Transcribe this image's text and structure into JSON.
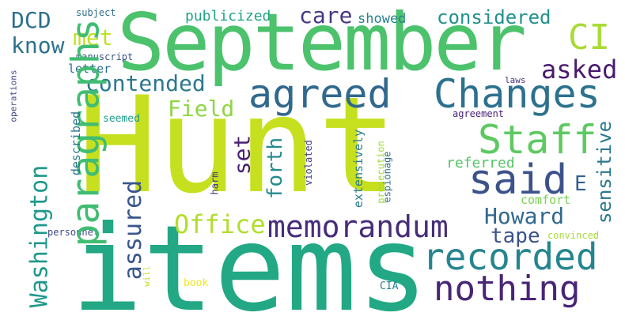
{
  "word_cloud": {
    "words": [
      {
        "text": "Hunt",
        "color": "#c6e01f"
      },
      {
        "text": "items",
        "color": "#22a884"
      },
      {
        "text": "September",
        "color": "#4cc26c"
      },
      {
        "text": "paragraphs",
        "color": "#40bd72"
      },
      {
        "text": "agreed",
        "color": "#31688e"
      },
      {
        "text": "Changes",
        "color": "#2c718e"
      },
      {
        "text": "Staff",
        "color": "#5ec962"
      },
      {
        "text": "said",
        "color": "#3b528b"
      },
      {
        "text": "recorded",
        "color": "#25858e"
      },
      {
        "text": "memorandum",
        "color": "#472d7b"
      },
      {
        "text": "nothing",
        "color": "#482576"
      },
      {
        "text": "Washington",
        "color": "#1f988b"
      },
      {
        "text": "assured",
        "color": "#39568c"
      },
      {
        "text": "Office",
        "color": "#b2dd2d"
      },
      {
        "text": "Howard",
        "color": "#31688e"
      },
      {
        "text": "tape",
        "color": "#3b528b"
      },
      {
        "text": "contended",
        "color": "#2a788e"
      },
      {
        "text": "know",
        "color": "#2c728e"
      },
      {
        "text": "DCD",
        "color": "#2d708e"
      },
      {
        "text": "met",
        "color": "#c2df23"
      },
      {
        "text": "care",
        "color": "#443983"
      },
      {
        "text": "considered",
        "color": "#21918c"
      },
      {
        "text": "CI",
        "color": "#a8db34"
      },
      {
        "text": "asked",
        "color": "#481b6d"
      },
      {
        "text": "Field",
        "color": "#8ed645"
      },
      {
        "text": "set",
        "color": "#482173"
      },
      {
        "text": "forth",
        "color": "#238a8d"
      },
      {
        "text": "sensitive",
        "color": "#2a788e"
      },
      {
        "text": "E",
        "color": "#34608d"
      },
      {
        "text": "publicized",
        "color": "#20a386"
      },
      {
        "text": "showed",
        "color": "#26828e"
      },
      {
        "text": "subject",
        "color": "#2e6f8e"
      },
      {
        "text": "manuscript",
        "color": "#3a538b"
      },
      {
        "text": "letter",
        "color": "#2d708e"
      },
      {
        "text": "operations",
        "color": "#3f4788"
      },
      {
        "text": "seemed",
        "color": "#1f9e89"
      },
      {
        "text": "described",
        "color": "#2a788e"
      },
      {
        "text": "extensively",
        "color": "#287c8e"
      },
      {
        "text": "referred",
        "color": "#54c568"
      },
      {
        "text": "comfort",
        "color": "#7ad151"
      },
      {
        "text": "laws",
        "color": "#46337f"
      },
      {
        "text": "agreement",
        "color": "#482576"
      },
      {
        "text": "harm",
        "color": "#443a83"
      },
      {
        "text": "violated",
        "color": "#424086"
      },
      {
        "text": "personnel",
        "color": "#3e4989"
      },
      {
        "text": "prosecution",
        "color": "#9fda3a"
      },
      {
        "text": "espionage",
        "color": "#2f6b8e"
      },
      {
        "text": "will",
        "color": "#c8e020"
      },
      {
        "text": "book",
        "color": "#f1e51d"
      },
      {
        "text": "CIA",
        "color": "#27808e"
      },
      {
        "text": "convinced",
        "color": "#a5db36"
      }
    ]
  }
}
